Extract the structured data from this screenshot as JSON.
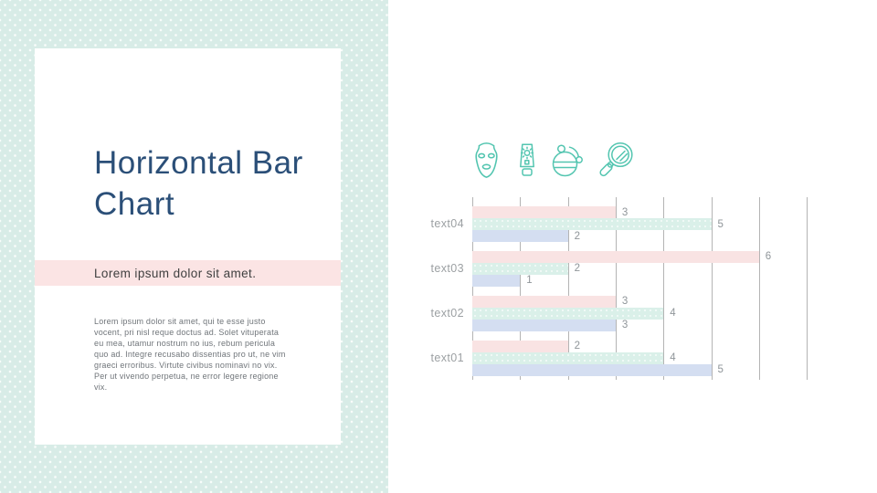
{
  "slide": {
    "title": "Horizontal Bar Chart",
    "subtitle": "Lorem ipsum dolor sit amet.",
    "body_text": "Lorem ipsum dolor sit amet, qui te esse justo vocent, pri nisl reque doctus ad. Solet vituperata eu mea, utamur nostrum no ius, rebum pericula quo ad. Integre recusabo dissentias pro ut, ne vim graeci erroribus. Virtute civibus nominavi no vix. Per ut vivendo perpetua, ne error legere regione vix."
  },
  "icons": {
    "color": "#53c5b0",
    "items": [
      "face-mask-icon",
      "sunscreen-tube-icon",
      "powder-jar-icon",
      "hand-mirror-icon"
    ]
  },
  "colors": {
    "panel_mint": "#d8ece7",
    "card_white": "#ffffff",
    "title_blue": "#2b4f78",
    "subtitle_band_pink": "#fbe4e4",
    "gridline_gray": "#b4b4b4",
    "label_gray": "#9ca0a3",
    "value_label_gray": "#8f9599"
  },
  "chart_data": {
    "type": "bar",
    "orientation": "horizontal",
    "title": "",
    "categories": [
      "text04",
      "text03",
      "text02",
      "text01"
    ],
    "category_order": "top-to-bottom",
    "series": [
      {
        "name": "series-pink",
        "color": "#f9e3e3",
        "values": [
          3,
          6,
          3,
          2
        ]
      },
      {
        "name": "series-mint",
        "color": "#daf0e9",
        "values": [
          5,
          2,
          4,
          4
        ]
      },
      {
        "name": "series-blue",
        "color": "#d4def1",
        "values": [
          2,
          1,
          3,
          5
        ]
      }
    ],
    "xlim": [
      0,
      7
    ],
    "grid": "vertical gridlines every 1 unit from 0 to 7",
    "legend": "none",
    "value_labels": "shown at end of each bar"
  }
}
